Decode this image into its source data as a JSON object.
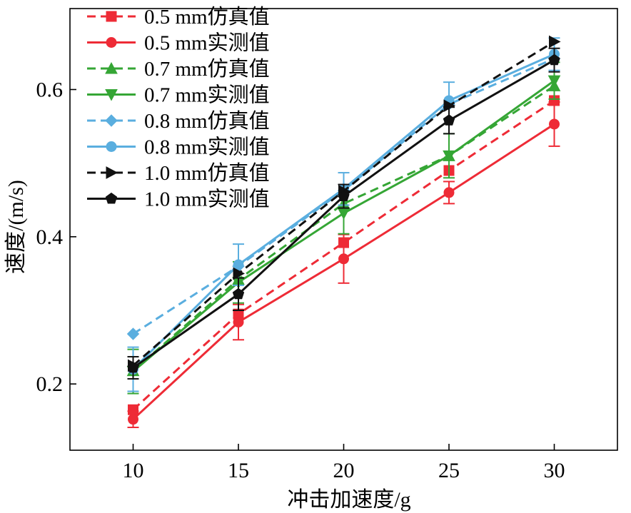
{
  "chart_data": {
    "type": "line",
    "title": "",
    "xlabel": "冲击加速度/g",
    "ylabel": "速度/(m/s)",
    "x": [
      10,
      15,
      20,
      25,
      30
    ],
    "xlim": [
      7,
      33
    ],
    "ylim": [
      0.11,
      0.71
    ],
    "xticks": [
      10,
      15,
      20,
      25,
      30
    ],
    "yticks": [
      0.2,
      0.4,
      0.6
    ],
    "grid": false,
    "legend_position": "top-left",
    "series": [
      {
        "name": "0.5 mm仿真值",
        "color": "#ee2b36",
        "dash": true,
        "marker": "square",
        "values": [
          0.165,
          0.295,
          0.392,
          0.49,
          0.585
        ]
      },
      {
        "name": "0.5 mm实测值",
        "color": "#ee2b36",
        "dash": false,
        "marker": "circle",
        "values": [
          0.152,
          0.284,
          0.37,
          0.46,
          0.553
        ],
        "err": [
          0.011,
          0.024,
          0.033,
          0.015,
          0.03
        ]
      },
      {
        "name": "0.7 mm仿真值",
        "color": "#35a635",
        "dash": true,
        "marker": "triangle-up",
        "values": [
          0.218,
          0.342,
          0.445,
          0.51,
          0.605
        ]
      },
      {
        "name": "0.7 mm实测值",
        "color": "#35a635",
        "dash": false,
        "marker": "triangle-down",
        "values": [
          0.217,
          0.338,
          0.432,
          0.51,
          0.612
        ],
        "err": [
          0.03,
          0.028,
          0.028,
          0.03,
          0.025
        ]
      },
      {
        "name": "0.8 mm仿真值",
        "color": "#5aaedf",
        "dash": true,
        "marker": "diamond",
        "values": [
          0.268,
          0.36,
          0.463,
          0.58,
          0.642
        ]
      },
      {
        "name": "0.8 mm实测值",
        "color": "#5aaedf",
        "dash": false,
        "marker": "circle",
        "values": [
          0.22,
          0.362,
          0.465,
          0.585,
          0.648
        ],
        "err": [
          0.03,
          0.028,
          0.022,
          0.025,
          0.022
        ]
      },
      {
        "name": "1.0 mm仿真值",
        "color": "#111111",
        "dash": true,
        "marker": "triangle-right",
        "values": [
          0.225,
          0.35,
          0.462,
          0.578,
          0.665
        ]
      },
      {
        "name": "1.0 mm实测值",
        "color": "#111111",
        "dash": false,
        "marker": "pentagon",
        "values": [
          0.222,
          0.322,
          0.455,
          0.558,
          0.64
        ],
        "err": [
          0.015,
          0.022,
          0.016,
          0.018,
          0.016
        ]
      }
    ]
  }
}
